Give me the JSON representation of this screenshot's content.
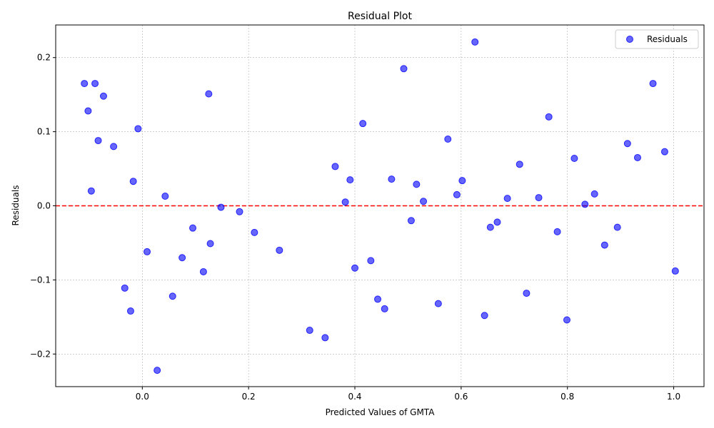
{
  "chart_data": {
    "type": "scatter",
    "title": "Residual Plot",
    "xlabel": "Predicted Values of GMTA",
    "ylabel": "Residuals",
    "xlim": [
      -0.163,
      1.057
    ],
    "ylim": [
      -0.244,
      0.244
    ],
    "xticks": [
      0.0,
      0.2,
      0.4,
      0.6,
      0.8,
      1.0
    ],
    "xtick_labels": [
      "0.0",
      "0.2",
      "0.4",
      "0.6",
      "0.8",
      "1.0"
    ],
    "yticks": [
      -0.2,
      -0.1,
      0.0,
      0.1,
      0.2
    ],
    "ytick_labels": [
      "−0.2",
      "−0.1",
      "0.0",
      "0.1",
      "0.2"
    ],
    "grid": true,
    "legend_position": "top-right",
    "reference_line": {
      "y": 0.0,
      "style": "dashed",
      "color": "#ff0000"
    },
    "series": [
      {
        "name": "Residuals",
        "color": "#0000ff",
        "points": [
          [
            -0.109,
            0.165
          ],
          [
            -0.102,
            0.128
          ],
          [
            -0.096,
            0.02
          ],
          [
            -0.089,
            0.165
          ],
          [
            -0.083,
            0.088
          ],
          [
            -0.073,
            0.148
          ],
          [
            -0.054,
            0.08
          ],
          [
            -0.033,
            -0.111
          ],
          [
            -0.022,
            -0.142
          ],
          [
            -0.017,
            0.033
          ],
          [
            -0.008,
            0.104
          ],
          [
            0.009,
            -0.062
          ],
          [
            0.028,
            -0.222
          ],
          [
            0.043,
            0.013
          ],
          [
            0.057,
            -0.122
          ],
          [
            0.075,
            -0.07
          ],
          [
            0.095,
            -0.03
          ],
          [
            0.115,
            -0.089
          ],
          [
            0.125,
            0.151
          ],
          [
            0.128,
            -0.051
          ],
          [
            0.148,
            -0.002
          ],
          [
            0.183,
            -0.008
          ],
          [
            0.211,
            -0.036
          ],
          [
            0.258,
            -0.06
          ],
          [
            0.315,
            -0.168
          ],
          [
            0.344,
            -0.178
          ],
          [
            0.363,
            0.053
          ],
          [
            0.382,
            0.005
          ],
          [
            0.391,
            0.035
          ],
          [
            0.4,
            -0.084
          ],
          [
            0.415,
            0.111
          ],
          [
            0.43,
            -0.074
          ],
          [
            0.443,
            -0.126
          ],
          [
            0.456,
            -0.139
          ],
          [
            0.469,
            0.036
          ],
          [
            0.492,
            0.185
          ],
          [
            0.506,
            -0.02
          ],
          [
            0.516,
            0.029
          ],
          [
            0.529,
            0.006
          ],
          [
            0.557,
            -0.132
          ],
          [
            0.575,
            0.09
          ],
          [
            0.592,
            0.015
          ],
          [
            0.602,
            0.034
          ],
          [
            0.626,
            0.221
          ],
          [
            0.644,
            -0.148
          ],
          [
            0.655,
            -0.029
          ],
          [
            0.668,
            -0.022
          ],
          [
            0.687,
            0.01
          ],
          [
            0.71,
            0.056
          ],
          [
            0.723,
            -0.118
          ],
          [
            0.746,
            0.011
          ],
          [
            0.765,
            0.12
          ],
          [
            0.781,
            -0.035
          ],
          [
            0.799,
            -0.154
          ],
          [
            0.813,
            0.064
          ],
          [
            0.833,
            0.002
          ],
          [
            0.851,
            0.016
          ],
          [
            0.87,
            -0.053
          ],
          [
            0.894,
            -0.029
          ],
          [
            0.913,
            0.084
          ],
          [
            0.932,
            0.065
          ],
          [
            0.961,
            0.165
          ],
          [
            0.983,
            0.073
          ],
          [
            1.003,
            -0.088
          ]
        ]
      }
    ]
  }
}
